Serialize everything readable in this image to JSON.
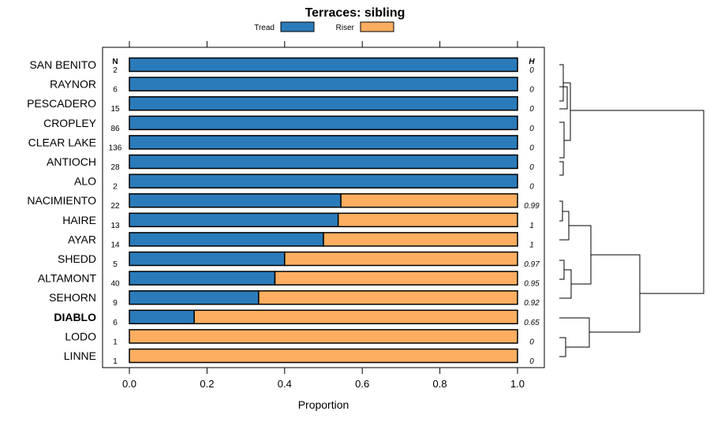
{
  "chart_data": {
    "type": "bar",
    "orientation": "horizontal",
    "stacked": true,
    "title": "Terraces: sibling",
    "xlabel": "Proportion",
    "xlim": [
      0,
      1
    ],
    "xticks": [
      "0.0",
      "0.2",
      "0.4",
      "0.6",
      "0.8",
      "1.0"
    ],
    "xtick_values": [
      0,
      0.2,
      0.4,
      0.6,
      0.8,
      1.0
    ],
    "legend_placement": "top-center",
    "n_header": "N",
    "h_header": "H",
    "series": [
      {
        "name": "Tread",
        "color": "#2b7bba"
      },
      {
        "name": "Riser",
        "color": "#fdae61"
      }
    ],
    "categories": [
      "SAN BENITO",
      "RAYNOR",
      "PESCADERO",
      "CROPLEY",
      "CLEAR LAKE",
      "ANTIOCH",
      "ALO",
      "NACIMIENTO",
      "HAIRE",
      "AYAR",
      "SHEDD",
      "ALTAMONT",
      "SEHORN",
      "DIABLO",
      "LODO",
      "LINNE"
    ],
    "tread": [
      1.0,
      1.0,
      1.0,
      1.0,
      1.0,
      1.0,
      1.0,
      0.545,
      0.538,
      0.5,
      0.4,
      0.375,
      0.333,
      0.167,
      0.0,
      0.0
    ],
    "riser": [
      0.0,
      0.0,
      0.0,
      0.0,
      0.0,
      0.0,
      0.0,
      0.455,
      0.462,
      0.5,
      0.6,
      0.625,
      0.667,
      0.833,
      1.0,
      1.0
    ],
    "n": [
      "2",
      "6",
      "15",
      "86",
      "136",
      "28",
      "2",
      "22",
      "13",
      "14",
      "5",
      "40",
      "9",
      "6",
      "1",
      "1"
    ],
    "h": [
      "0",
      "0",
      "0",
      "0",
      "0",
      "0",
      "0",
      "0.99",
      "1",
      "1",
      "0.97",
      "0.95",
      "0.92",
      "0.65",
      "0",
      "0"
    ],
    "highlight": "DIABLO"
  }
}
